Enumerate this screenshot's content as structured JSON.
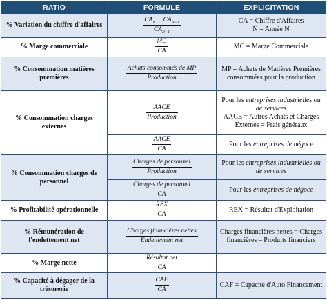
{
  "header": {
    "ratio": "RATIO",
    "formule": "FORMULE",
    "explicitation": "EXPLICITATION"
  },
  "rows": {
    "r1": {
      "ratio": "% Variation du chiffre d'affaires",
      "num_a": "CA",
      "num_a_sub": "N",
      "num_minus": " − ",
      "num_b": "CA",
      "num_b_sub": "N−1",
      "den": "CA",
      "den_sub": "N−1",
      "expl_1": "CA = Chiffre d'Affaires",
      "expl_2": "N = Année N"
    },
    "r2": {
      "ratio": "% Marge commerciale",
      "num": "MC",
      "den": "CA",
      "expl": "MC = Marge Commerciale"
    },
    "r3": {
      "ratio": "% Consommation matières premières",
      "num": "Achats consommés de MP",
      "den": "Production",
      "expl": "MP = Achats de Matières Premières consommées pour la production"
    },
    "r4": {
      "ratio": "% Consommation charges externes",
      "a": {
        "num": "AACE",
        "den": "Production",
        "expl_pre": "Pour les ",
        "expl_em": "entreprises industrielles ou de services",
        "expl_post": "AACE = Autres Achats et Charges Externes = Frais généraux"
      },
      "b": {
        "num": "AACE",
        "den": "CA",
        "expl_pre": "Pour les ",
        "expl_em": "entreprises de négoce"
      }
    },
    "r5": {
      "ratio": "% Consommation charges de personnel",
      "a": {
        "num": "Charges de personnel",
        "den": "Production",
        "expl_pre": "Pour les ",
        "expl_em": "entreprises industrielles ou de services"
      },
      "b": {
        "num": "Charges de personnel",
        "den": "CA",
        "expl_pre": "Pour les ",
        "expl_em": "entreprises de négoce"
      }
    },
    "r6": {
      "ratio": "% Profitabilité opérationnelle",
      "num": "REX",
      "den": "CA",
      "expl": "REX = Résultat d'Exploitation"
    },
    "r7": {
      "ratio": "% Rémunération de l'endettement net",
      "num": "Charges financières nettes",
      "den": "Endettement net",
      "expl": "Charges financières nettes = Charges financières – Produits financiers"
    },
    "r8": {
      "ratio": "% Marge nette",
      "num": "Résultat net",
      "den": "CA"
    },
    "r9": {
      "ratio": "% Capacité à dégager de la trésorerie",
      "num": "CAF",
      "den": "CA",
      "expl": "CAF = Capacité d'Auto Financement"
    }
  }
}
